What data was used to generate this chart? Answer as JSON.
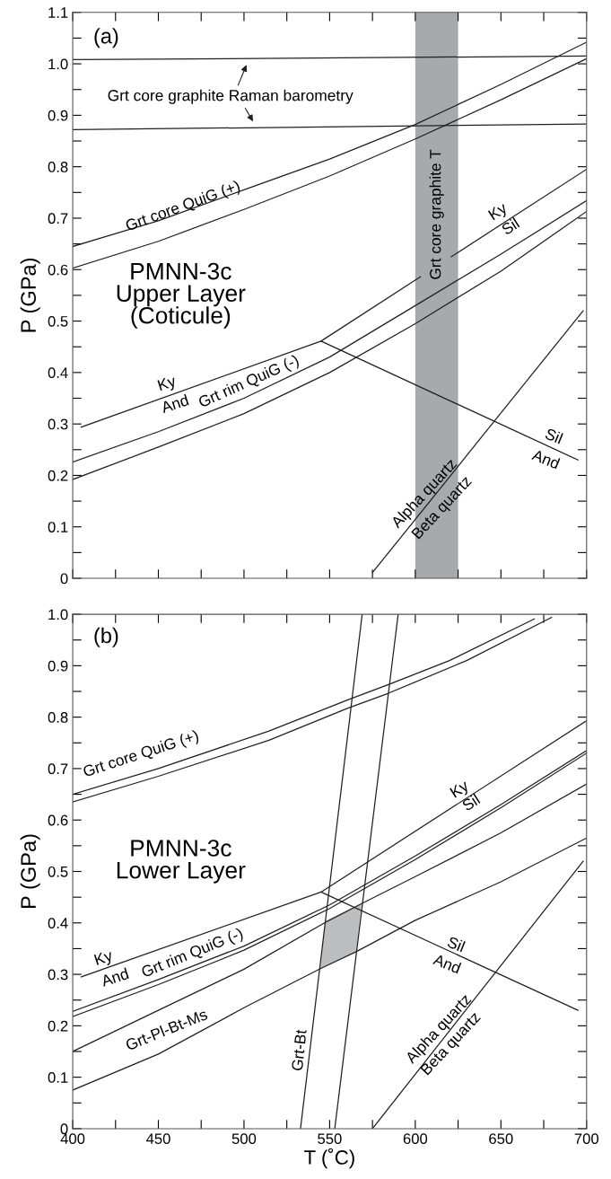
{
  "chart_data": [
    {
      "type": "line",
      "title": "(a)",
      "subtitle": "PMNN-3c\nUpper Layer\n(Coticule)",
      "ylabel": "P (GPa)",
      "tick_labels": "y",
      "grid": false,
      "legend": false,
      "marker": "none",
      "line_style": "solid",
      "xlim": [
        400,
        700
      ],
      "ylim": [
        0,
        1.1
      ],
      "xticks": [
        400,
        425,
        450,
        475,
        500,
        525,
        550,
        575,
        600,
        625,
        650,
        675,
        700
      ],
      "yticks": [
        0,
        {
          "value": 0.05,
          "label": null
        },
        0.1,
        {
          "value": 0.15,
          "label": null
        },
        0.2,
        {
          "value": 0.25,
          "label": null
        },
        0.3,
        {
          "value": 0.35,
          "label": null
        },
        0.4,
        {
          "value": 0.45,
          "label": null
        },
        0.5,
        {
          "value": 0.55,
          "label": null
        },
        0.6,
        {
          "value": 0.65,
          "label": null
        },
        0.7,
        {
          "value": 0.75,
          "label": null
        },
        0.8,
        {
          "value": 0.85,
          "label": null
        },
        0.9,
        {
          "value": 0.95,
          "label": null
        },
        {
          "value": 1,
          "label": "1.0"
        },
        {
          "value": 1.05,
          "label": null
        },
        1.1
      ],
      "bands": [
        {
          "axis": "x",
          "from": 600,
          "to": 625,
          "color": "#a7a9ac"
        }
      ],
      "series": [
        {
          "color": "#231f20",
          "x": [
            400,
            700
          ],
          "values": [
            1.008,
            1.015
          ]
        },
        {
          "color": "#231f20",
          "x": [
            400,
            700
          ],
          "values": [
            0.872,
            0.883
          ]
        },
        {
          "color": "#231f20",
          "x": [
            400,
            450,
            500,
            550,
            600,
            650,
            700
          ],
          "values": [
            0.645,
            0.695,
            0.755,
            0.815,
            0.882,
            0.96,
            1.042
          ]
        },
        {
          "color": "#231f20",
          "x": [
            400,
            450,
            500,
            550,
            600,
            650,
            700
          ],
          "values": [
            0.603,
            0.655,
            0.717,
            0.782,
            0.854,
            0.93,
            1.01
          ]
        },
        {
          "color": "#231f20",
          "x": [
            405,
            545,
            603,
            612,
            621,
            700
          ],
          "values": [
            0.294,
            0.461,
            0.586,
            null,
            0.625,
            0.795
          ]
        },
        {
          "color": "#231f20",
          "x": [
            545,
            695
          ],
          "values": [
            0.461,
            0.23
          ]
        },
        {
          "color": "#231f20",
          "x": [
            400,
            450,
            500,
            550,
            600,
            650,
            700
          ],
          "values": [
            0.226,
            0.285,
            0.35,
            0.43,
            0.53,
            0.63,
            0.734
          ]
        },
        {
          "color": "#231f20",
          "x": [
            400,
            450,
            500,
            550,
            600,
            650,
            700
          ],
          "values": [
            0.192,
            0.255,
            0.32,
            0.4,
            0.495,
            0.597,
            0.713
          ]
        },
        {
          "color": "#231f20",
          "x": [
            575,
            698
          ],
          "values": [
            0.011,
            0.52
          ]
        }
      ],
      "annotations": [
        "Grt core graphite Raman barometry",
        "Grt core QuiG (+)",
        "Grt core graphite T",
        "Ky",
        "Sil",
        "Ky",
        "And",
        "Grt rim QuiG (-)",
        "Sil",
        "And",
        "Alpha quartz",
        "Beta quartz"
      ]
    },
    {
      "type": "line",
      "title": "(b)",
      "subtitle": "PMNN-3c\nLower Layer",
      "xlabel": "T (˚C)",
      "ylabel": "P (GPa)",
      "grid": false,
      "legend": false,
      "marker": "none",
      "line_style": "solid",
      "xlim": [
        400,
        700
      ],
      "ylim": [
        0,
        1.0
      ],
      "xticks": [
        400,
        {
          "value": 425,
          "label": null
        },
        450,
        {
          "value": 475,
          "label": null
        },
        500,
        {
          "value": 525,
          "label": null
        },
        550,
        {
          "value": 575,
          "label": null
        },
        600,
        {
          "value": 625,
          "label": null
        },
        650,
        {
          "value": 675,
          "label": null
        },
        700
      ],
      "yticks": [
        0,
        {
          "value": 0.05,
          "label": null
        },
        0.1,
        {
          "value": 0.15,
          "label": null
        },
        0.2,
        {
          "value": 0.25,
          "label": null
        },
        0.3,
        {
          "value": 0.35,
          "label": null
        },
        0.4,
        {
          "value": 0.45,
          "label": null
        },
        0.5,
        {
          "value": 0.55,
          "label": null
        },
        0.6,
        {
          "value": 0.65,
          "label": null
        },
        0.7,
        {
          "value": 0.75,
          "label": null
        },
        0.8,
        {
          "value": 0.85,
          "label": null
        },
        0.9,
        {
          "value": 0.95,
          "label": null
        },
        {
          "value": 1,
          "label": "1.0"
        }
      ],
      "series": [
        {
          "type": "area",
          "color": "#bcbec0",
          "x": [
            544.6,
            547.4,
            568.6,
            565.5
          ],
          "values": [
            0.311,
            0.404,
            0.438,
            0.344
          ]
        },
        {
          "color": "#231f20",
          "x": [
            400,
            450,
            514.6,
            561,
            584,
            620,
            669.5
          ],
          "values": [
            0.65,
            0.7,
            0.773,
            0.834,
            0.863,
            0.91,
            0.991
          ]
        },
        {
          "color": "#231f20",
          "x": [
            400,
            450,
            514.6,
            561,
            584,
            630,
            679.6
          ],
          "values": [
            0.635,
            0.685,
            0.755,
            0.818,
            0.846,
            0.91,
            0.994
          ]
        },
        {
          "color": "#231f20",
          "x": [
            405,
            545,
            700
          ],
          "values": [
            0.295,
            0.46,
            0.793
          ]
        },
        {
          "color": "#231f20",
          "x": [
            545,
            695
          ],
          "values": [
            0.46,
            0.23
          ]
        },
        {
          "color": "#231f20",
          "x": [
            400,
            450,
            500,
            550,
            600,
            650,
            700
          ],
          "values": [
            0.228,
            0.29,
            0.355,
            0.435,
            0.53,
            0.63,
            0.735
          ]
        },
        {
          "color": "#231f20",
          "x": [
            400,
            450,
            500,
            550,
            600,
            650,
            700
          ],
          "values": [
            0.218,
            0.28,
            0.347,
            0.428,
            0.523,
            0.624,
            0.73
          ]
        },
        {
          "color": "#231f20",
          "x": [
            400,
            450,
            500,
            547,
            569,
            600,
            650,
            700
          ],
          "values": [
            0.15,
            0.23,
            0.31,
            0.4,
            0.438,
            0.49,
            0.575,
            0.67
          ]
        },
        {
          "color": "#231f20",
          "x": [
            400,
            450,
            500,
            544.6,
            565.5,
            600,
            650,
            700
          ],
          "values": [
            0.075,
            0.145,
            0.235,
            0.311,
            0.344,
            0.405,
            0.48,
            0.565
          ]
        },
        {
          "color": "#231f20",
          "x": [
            533,
            569
          ],
          "values": [
            0,
            1.0
          ]
        },
        {
          "color": "#231f20",
          "x": [
            553,
            590
          ],
          "values": [
            0,
            1.0
          ]
        },
        {
          "color": "#231f20",
          "x": [
            575,
            698
          ],
          "values": [
            0,
            0.52
          ]
        }
      ],
      "annotations": [
        "Grt core QuiG (+)",
        "Ky",
        "Sil",
        "Ky",
        "And",
        "Grt rim QuiG (-)",
        "Grt-Pl-Bt-Ms",
        "Grt-Bt",
        "Sil",
        "And",
        "Alpha quartz",
        "Beta quartz"
      ]
    }
  ]
}
